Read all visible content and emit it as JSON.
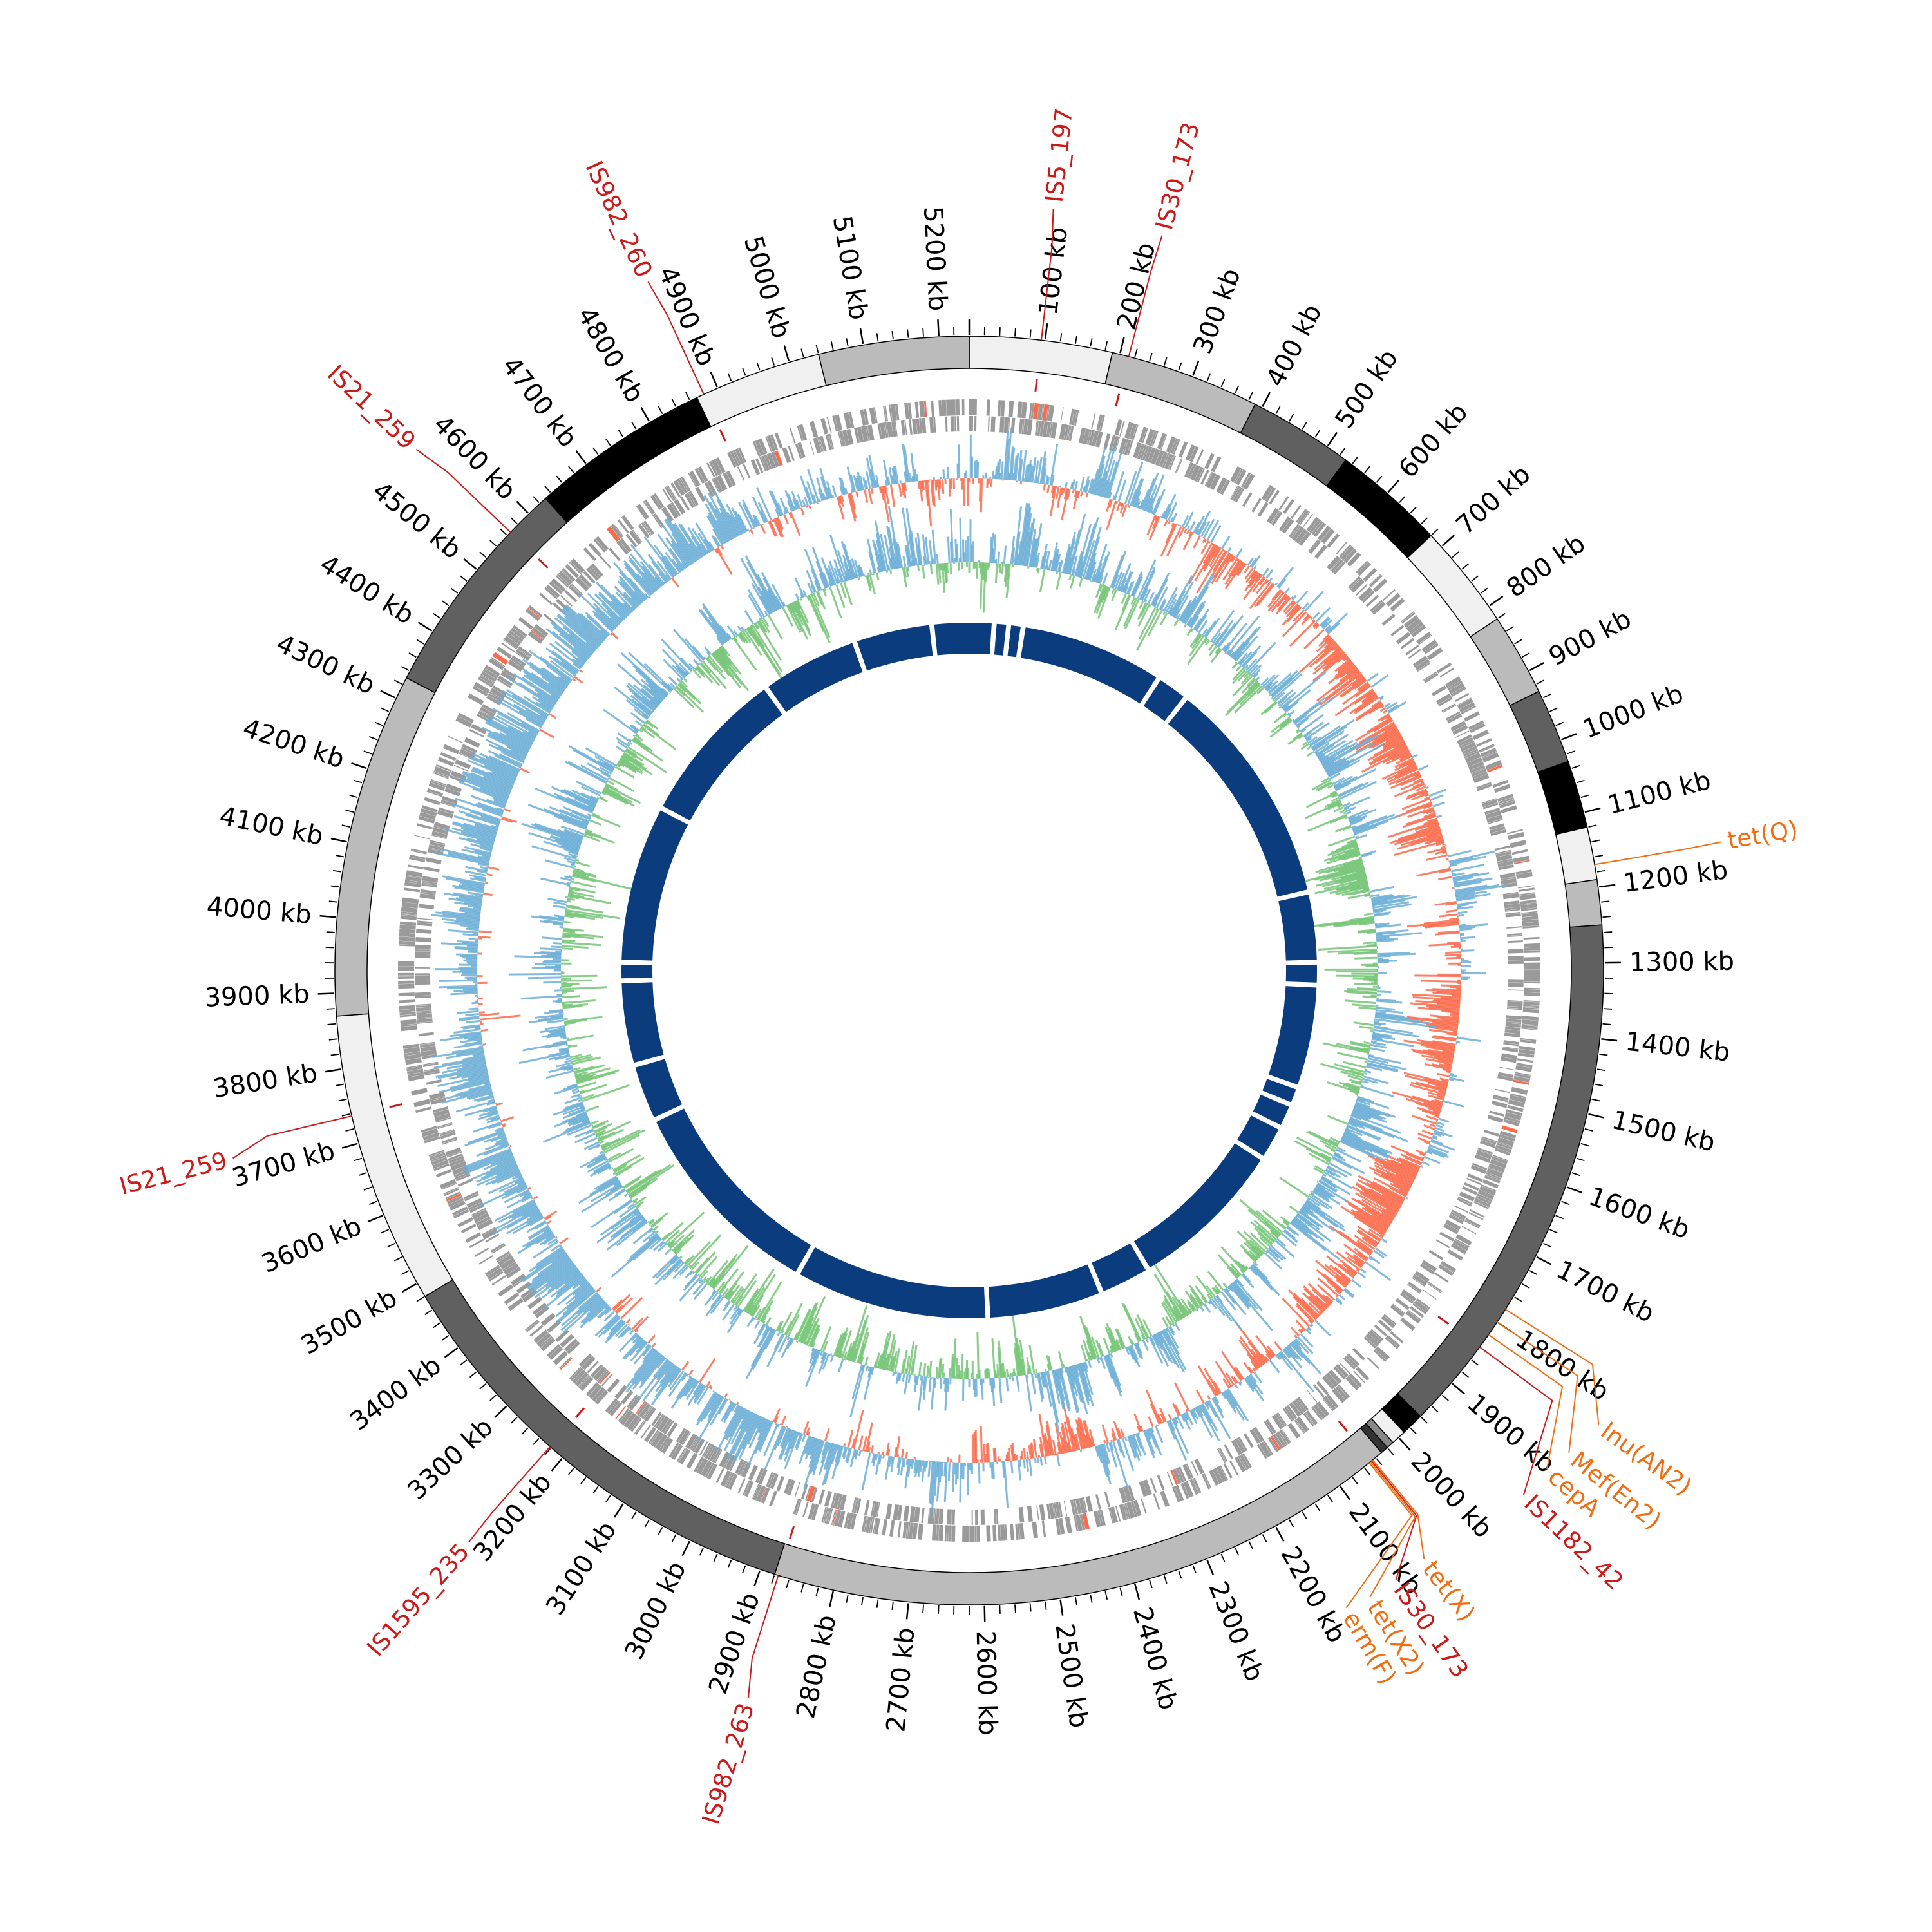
{
  "genome": {
    "total_kb": 5240,
    "tick_labels": [
      "100 kb",
      "200 kb",
      "300 kb",
      "400 kb",
      "500 kb",
      "600 kb",
      "700 kb",
      "800 kb",
      "900 kb",
      "1000 kb",
      "1100 kb",
      "1200 kb",
      "1300 kb",
      "1400 kb",
      "1500 kb",
      "1600 kb",
      "1700 kb",
      "1800 kb",
      "1900 kb",
      "2000 kb",
      "2100 kb",
      "2200 kb",
      "2300 kb",
      "2400 kb",
      "2500 kb",
      "2600 kb",
      "2700 kb",
      "2800 kb",
      "2900 kb",
      "3000 kb",
      "3100 kb",
      "3200 kb",
      "3300 kb",
      "3400 kb",
      "3500 kb",
      "3600 kb",
      "3700 kb",
      "3800 kb",
      "3900 kb",
      "4000 kb",
      "4100 kb",
      "4200 kb",
      "4300 kb",
      "4400 kb",
      "4500 kb",
      "4600 kb",
      "4700 kb",
      "4800 kb",
      "4900 kb",
      "5000 kb",
      "5100 kb",
      "5200 kb"
    ]
  },
  "ideogram_segments": [
    {
      "start": 0,
      "end": 190,
      "shade": "#f0f0f0"
    },
    {
      "start": 190,
      "end": 390,
      "shade": "#bbbbbb"
    },
    {
      "start": 390,
      "end": 530,
      "shade": "#606060"
    },
    {
      "start": 530,
      "end": 680,
      "shade": "#000000"
    },
    {
      "start": 680,
      "end": 820,
      "shade": "#f0f0f0"
    },
    {
      "start": 820,
      "end": 930,
      "shade": "#bbbbbb"
    },
    {
      "start": 930,
      "end": 1030,
      "shade": "#606060"
    },
    {
      "start": 1030,
      "end": 1120,
      "shade": "#000000"
    },
    {
      "start": 1120,
      "end": 1190,
      "shade": "#f0f0f0"
    },
    {
      "start": 1190,
      "end": 1250,
      "shade": "#bbbbbb"
    },
    {
      "start": 1250,
      "end": 1960,
      "shade": "#606060"
    },
    {
      "start": 1960,
      "end": 1990,
      "shade": "#000000"
    },
    {
      "start": 1990,
      "end": 2010,
      "shade": "#f0f0f0"
    },
    {
      "start": 2010,
      "end": 2020,
      "shade": "#888888"
    },
    {
      "start": 2020,
      "end": 2030,
      "shade": "#333333"
    },
    {
      "start": 2030,
      "end": 2880,
      "shade": "#bbbbbb"
    },
    {
      "start": 2880,
      "end": 3480,
      "shade": "#606060"
    },
    {
      "start": 3480,
      "end": 3870,
      "shade": "#f0f0f0"
    },
    {
      "start": 3870,
      "end": 4330,
      "shade": "#bbbbbb"
    },
    {
      "start": 4330,
      "end": 4630,
      "shade": "#606060"
    },
    {
      "start": 4630,
      "end": 4870,
      "shade": "#000000"
    },
    {
      "start": 4870,
      "end": 5040,
      "shade": "#f0f0f0"
    },
    {
      "start": 5040,
      "end": 5240,
      "shade": "#bbbbbb"
    }
  ],
  "annotations": [
    {
      "label": "IS5_197",
      "kb": 95,
      "type": "IS"
    },
    {
      "label": "IS30_173",
      "kb": 212,
      "type": "IS"
    },
    {
      "label": "tet(Q)",
      "kb": 1170,
      "type": "ARG"
    },
    {
      "label": "lnu(AN2)",
      "kb": 1780,
      "type": "ARG"
    },
    {
      "label": "Mef(En2)",
      "kb": 1800,
      "type": "ARG"
    },
    {
      "label": "cepA",
      "kb": 1820,
      "type": "ARG"
    },
    {
      "label": "IS1182_42",
      "kb": 1840,
      "type": "IS"
    },
    {
      "label": "tet(X)",
      "kb": 2045,
      "type": "ARG"
    },
    {
      "label": "IS30_173",
      "kb": 2047,
      "type": "IS"
    },
    {
      "label": "tet(X2)",
      "kb": 2049,
      "type": "ARG"
    },
    {
      "label": "erm(F)",
      "kb": 2051,
      "type": "ARG"
    },
    {
      "label": "IS982_263",
      "kb": 2875,
      "type": "IS"
    },
    {
      "label": "IS1595_235",
      "kb": 3222,
      "type": "IS"
    },
    {
      "label": "IS21_259",
      "kb": 3737,
      "type": "IS"
    },
    {
      "label": "IS21_259",
      "kb": 4566,
      "type": "IS"
    },
    {
      "label": "IS982_260",
      "kb": 4880,
      "type": "IS"
    }
  ],
  "colors": {
    "IS": "#cc1a1a",
    "ARG": "#f26d10",
    "genes": "#9a9a9a",
    "skew_pos": "#6baed6",
    "skew_neg": "#fb6a4a",
    "gc_pos": "#6baed6",
    "gc_neg": "#74c476",
    "core_ring": "#0b3d7e"
  },
  "core_ring_gaps_kb": [
    60,
    95,
    130,
    480,
    560,
    1120,
    1290,
    1345,
    1595,
    1640,
    1700,
    1785,
    2170,
    2295,
    2575,
    3050,
    3560,
    3700,
    3905,
    3950,
    4335,
    4720,
    4960,
    5150
  ]
}
